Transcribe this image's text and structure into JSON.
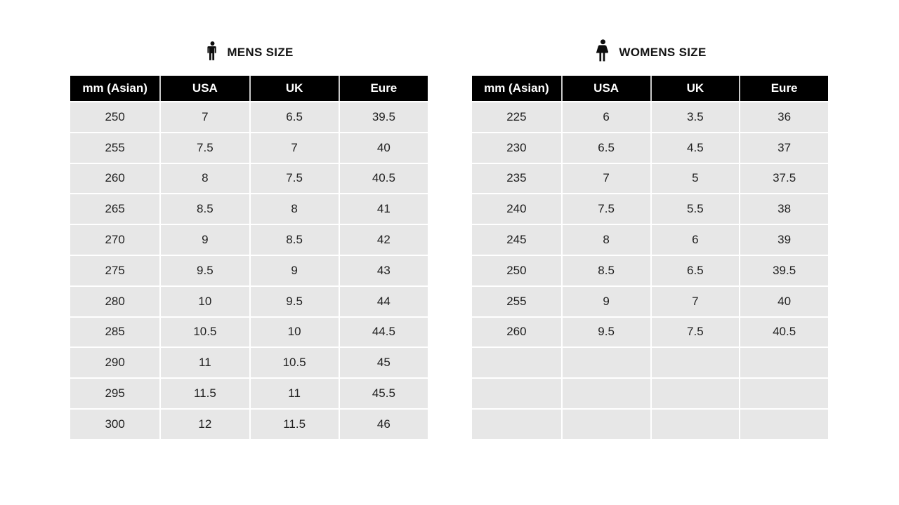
{
  "colors": {
    "page_bg": "#ffffff",
    "header_bg": "#000000",
    "header_text": "#ffffff",
    "row_bg": "#e7e7e7",
    "body_text": "#212121",
    "header_divider": "#c9c9c9",
    "grid_line": "#ffffff",
    "icon_color": "#0d0d0d"
  },
  "chart_data": [
    {
      "type": "table",
      "title": "MENS SIZE",
      "icon": "man-icon",
      "columns": [
        "mm (Asian)",
        "USA",
        "UK",
        "Eure"
      ],
      "rows": [
        [
          "250",
          "7",
          "6.5",
          "39.5"
        ],
        [
          "255",
          "7.5",
          "7",
          "40"
        ],
        [
          "260",
          "8",
          "7.5",
          "40.5"
        ],
        [
          "265",
          "8.5",
          "8",
          "41"
        ],
        [
          "270",
          "9",
          "8.5",
          "42"
        ],
        [
          "275",
          "9.5",
          "9",
          "43"
        ],
        [
          "280",
          "10",
          "9.5",
          "44"
        ],
        [
          "285",
          "10.5",
          "10",
          "44.5"
        ],
        [
          "290",
          "11",
          "10.5",
          "45"
        ],
        [
          "295",
          "11.5",
          "11",
          "45.5"
        ],
        [
          "300",
          "12",
          "11.5",
          "46"
        ]
      ]
    },
    {
      "type": "table",
      "title": "WOMENS SIZE",
      "icon": "woman-icon",
      "columns": [
        "mm (Asian)",
        "USA",
        "UK",
        "Eure"
      ],
      "rows": [
        [
          "225",
          "6",
          "3.5",
          "36"
        ],
        [
          "230",
          "6.5",
          "4.5",
          "37"
        ],
        [
          "235",
          "7",
          "5",
          "37.5"
        ],
        [
          "240",
          "7.5",
          "5.5",
          "38"
        ],
        [
          "245",
          "8",
          "6",
          "39"
        ],
        [
          "250",
          "8.5",
          "6.5",
          "39.5"
        ],
        [
          "255",
          "9",
          "7",
          "40"
        ],
        [
          "260",
          "9.5",
          "7.5",
          "40.5"
        ],
        [
          "",
          "",
          "",
          ""
        ],
        [
          "",
          "",
          "",
          ""
        ],
        [
          "",
          "",
          "",
          ""
        ]
      ]
    }
  ]
}
